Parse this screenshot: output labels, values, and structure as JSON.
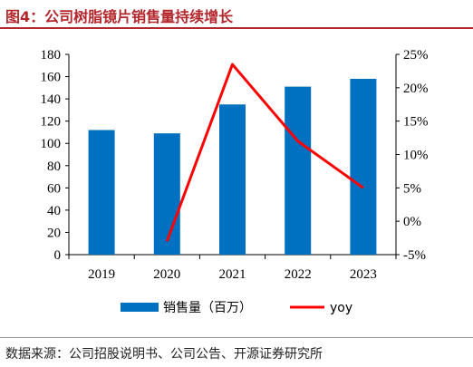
{
  "header": {
    "title": "图4：公司树脂镜片销售量持续增长"
  },
  "footer": {
    "source": "数据来源：公司招股说明书、公司公告、开源证券研究所"
  },
  "chart_data": {
    "type": "bar",
    "categories": [
      "2019",
      "2020",
      "2021",
      "2022",
      "2023"
    ],
    "series": [
      {
        "name": "销售量（百万）",
        "type": "bar",
        "axis": "left",
        "color": "#0070c0",
        "values": [
          112,
          109,
          135,
          151,
          158
        ]
      },
      {
        "name": "yoy",
        "type": "line",
        "axis": "right",
        "color": "#ff0000",
        "values": [
          null,
          -3,
          23.5,
          12,
          5
        ]
      }
    ],
    "y_left": {
      "min": 0,
      "max": 180,
      "step": 20,
      "tick_labels": [
        "0",
        "20",
        "40",
        "60",
        "80",
        "100",
        "120",
        "140",
        "160",
        "180"
      ]
    },
    "y_right": {
      "min": -5,
      "max": 25,
      "step": 5,
      "tick_labels": [
        "-5%",
        "0%",
        "5%",
        "10%",
        "15%",
        "20%",
        "25%"
      ]
    },
    "title": "",
    "xlabel": "",
    "ylabel": "",
    "grid": false,
    "legend": "bottom"
  }
}
